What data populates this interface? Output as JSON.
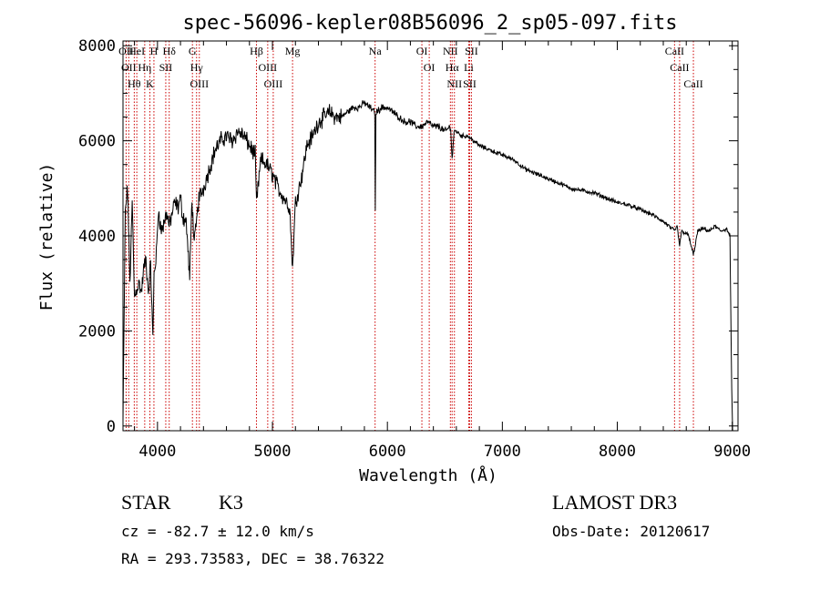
{
  "chart_data": {
    "type": "line",
    "title": "spec-56096-kepler08B56096_2_sp05-097.fits",
    "xlabel": "Wavelength (Å)",
    "ylabel": "Flux (relative)",
    "xlim": [
      3700,
      9050
    ],
    "ylim": [
      -100,
      8100
    ],
    "xticks": [
      4000,
      5000,
      6000,
      7000,
      8000,
      9000
    ],
    "yticks": [
      0,
      2000,
      4000,
      6000,
      8000
    ],
    "series": [
      {
        "name": "flux",
        "x": [
          3700,
          3720,
          3740,
          3760,
          3780,
          3800,
          3820,
          3840,
          3860,
          3880,
          3900,
          3920,
          3940,
          3960,
          3970,
          3990,
          4010,
          4030,
          4050,
          4080,
          4102,
          4120,
          4150,
          4180,
          4200,
          4220,
          4250,
          4280,
          4300,
          4320,
          4340,
          4360,
          4380,
          4400,
          4450,
          4500,
          4550,
          4600,
          4650,
          4700,
          4750,
          4800,
          4850,
          4861,
          4900,
          4950,
          5000,
          5050,
          5100,
          5150,
          5175,
          5200,
          5250,
          5300,
          5350,
          5400,
          5450,
          5500,
          5550,
          5600,
          5650,
          5700,
          5750,
          5800,
          5850,
          5890,
          5895,
          5900,
          5950,
          6000,
          6050,
          6100,
          6150,
          6200,
          6250,
          6300,
          6350,
          6400,
          6450,
          6500,
          6550,
          6563,
          6580,
          6600,
          6650,
          6700,
          6750,
          6800,
          6900,
          7000,
          7100,
          7200,
          7300,
          7400,
          7500,
          7600,
          7700,
          7800,
          7900,
          8000,
          8100,
          8200,
          8300,
          8400,
          8498,
          8520,
          8542,
          8560,
          8600,
          8620,
          8662,
          8700,
          8750,
          8800,
          8850,
          8900,
          8950,
          8980,
          8995
        ],
        "y": [
          100,
          4500,
          5000,
          3000,
          4700,
          2700,
          2900,
          3000,
          2800,
          3300,
          3500,
          2800,
          3400,
          1800,
          3200,
          3600,
          4600,
          4100,
          4200,
          4500,
          4200,
          4400,
          4700,
          4600,
          4800,
          4400,
          4300,
          3100,
          4800,
          3800,
          4300,
          4800,
          4900,
          5000,
          5400,
          5800,
          6000,
          6100,
          6000,
          6200,
          6100,
          5900,
          5700,
          4700,
          5600,
          5500,
          5300,
          5000,
          4800,
          4600,
          3300,
          4700,
          5200,
          5900,
          6100,
          6400,
          6500,
          6600,
          6500,
          6500,
          6600,
          6700,
          6700,
          6800,
          6700,
          6600,
          4500,
          6600,
          6700,
          6700,
          6600,
          6500,
          6400,
          6400,
          6300,
          6300,
          6400,
          6300,
          6300,
          6200,
          6300,
          5600,
          6200,
          6200,
          6100,
          6100,
          6000,
          5900,
          5800,
          5700,
          5600,
          5400,
          5300,
          5200,
          5100,
          5000,
          4950,
          4900,
          4800,
          4700,
          4650,
          4550,
          4450,
          4300,
          4100,
          4200,
          3800,
          4100,
          4050,
          4000,
          3600,
          4100,
          4150,
          4100,
          4200,
          4100,
          4150,
          4000,
          800
        ]
      }
    ],
    "lines": [
      {
        "wavelength": 3727,
        "label": "OII"
      },
      {
        "wavelength": 3750,
        "label": "OII"
      },
      {
        "wavelength": 3798,
        "label": "Hθ"
      },
      {
        "wavelength": 3820,
        "label": "HeI"
      },
      {
        "wavelength": 3889,
        "label": "Hη"
      },
      {
        "wavelength": 3934,
        "label": "K"
      },
      {
        "wavelength": 3969,
        "label": "H"
      },
      {
        "wavelength": 4072,
        "label": "SII"
      },
      {
        "wavelength": 4102,
        "label": "Hδ"
      },
      {
        "wavelength": 4304,
        "label": "G"
      },
      {
        "wavelength": 4340,
        "label": "Hγ"
      },
      {
        "wavelength": 4364,
        "label": "OIII"
      },
      {
        "wavelength": 4861,
        "label": "Hβ"
      },
      {
        "wavelength": 4959,
        "label": "OIII"
      },
      {
        "wavelength": 5007,
        "label": "OIII"
      },
      {
        "wavelength": 5175,
        "label": "Mg"
      },
      {
        "wavelength": 5893,
        "label": "Na"
      },
      {
        "wavelength": 6300,
        "label": "OI"
      },
      {
        "wavelength": 6364,
        "label": "OI"
      },
      {
        "wavelength": 6548,
        "label": "NII"
      },
      {
        "wavelength": 6563,
        "label": "Hα"
      },
      {
        "wavelength": 6583,
        "label": "NII"
      },
      {
        "wavelength": 6708,
        "label": "Li"
      },
      {
        "wavelength": 6716,
        "label": "SII"
      },
      {
        "wavelength": 6731,
        "label": "SII"
      },
      {
        "wavelength": 8498,
        "label": "CaII"
      },
      {
        "wavelength": 8542,
        "label": "CaII"
      },
      {
        "wavelength": 8662,
        "label": "CaII"
      }
    ]
  },
  "info": {
    "class_label": "STAR",
    "subclass": "K3",
    "survey": "LAMOST DR3",
    "cz": "cz = -82.7 ± 12.0 km/s",
    "obs_date": "Obs-Date: 20120617",
    "coords": "RA = 293.73583, DEC =  38.76322"
  },
  "colors": {
    "marker_line": "#cc0000",
    "spectrum": "#000000",
    "text": "#000000"
  }
}
